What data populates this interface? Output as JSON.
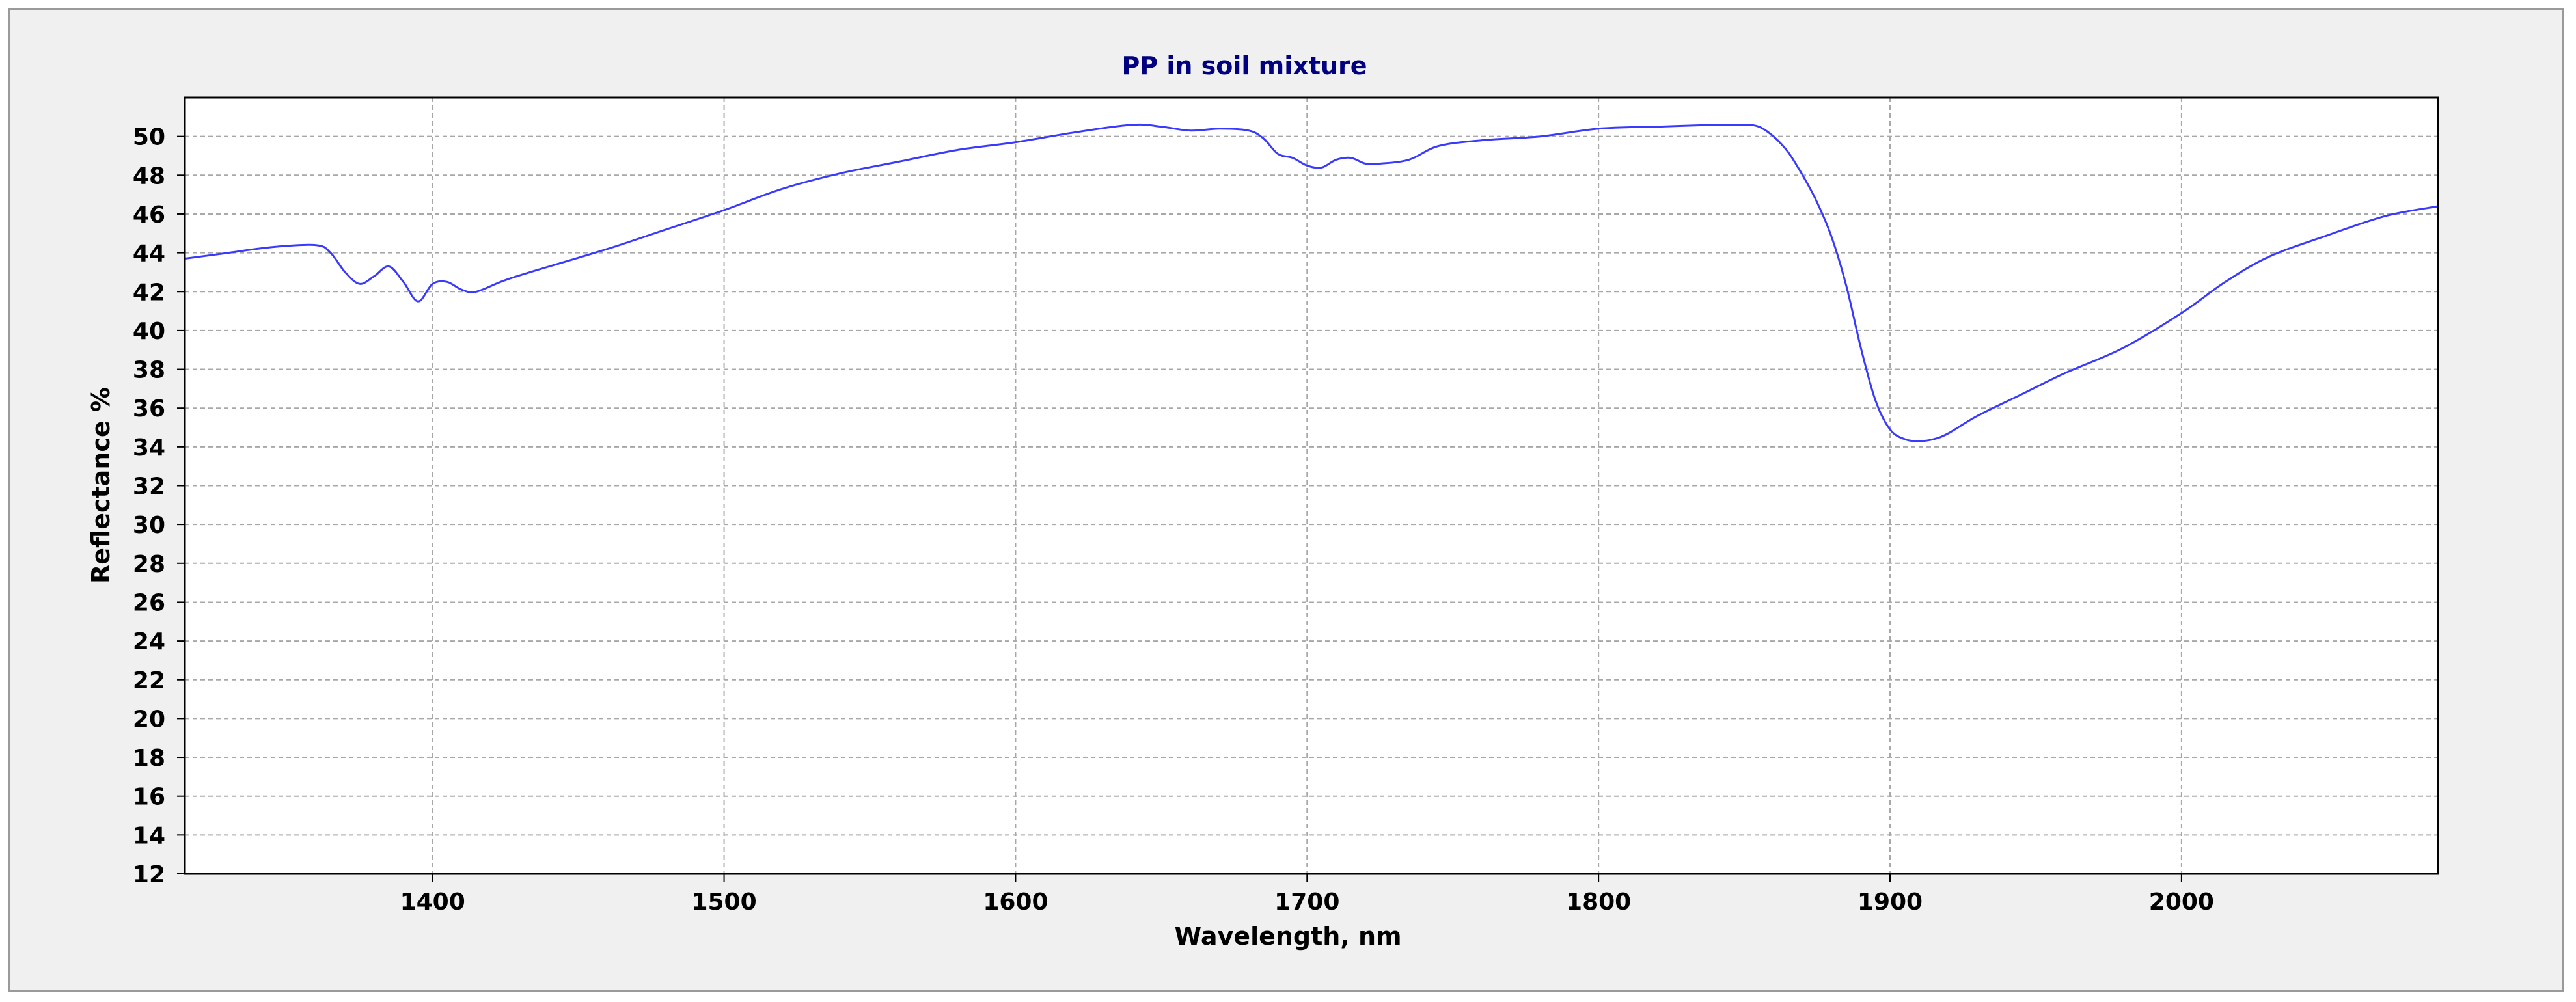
{
  "chart_data": {
    "type": "line",
    "title": "PP in soil mixture",
    "xlabel": "Wavelength, nm",
    "ylabel": "Reflectance %",
    "xlim": [
      1315,
      2088
    ],
    "ylim": [
      12,
      52
    ],
    "xticks": [
      1400,
      1500,
      1600,
      1700,
      1800,
      1900,
      2000
    ],
    "yticks": [
      12,
      14,
      16,
      18,
      20,
      22,
      24,
      26,
      28,
      30,
      32,
      34,
      36,
      38,
      40,
      42,
      44,
      46,
      48,
      50
    ],
    "grid": true,
    "line_color": "#3a3aff",
    "series": [
      {
        "x": [
          1315,
          1330,
          1345,
          1360,
          1365,
          1370,
          1375,
          1380,
          1385,
          1390,
          1395,
          1400,
          1405,
          1410,
          1415,
          1425,
          1440,
          1460,
          1480,
          1500,
          1520,
          1540,
          1560,
          1580,
          1600,
          1620,
          1640,
          1650,
          1660,
          1670,
          1680,
          1685,
          1690,
          1695,
          1700,
          1705,
          1710,
          1715,
          1720,
          1725,
          1735,
          1745,
          1760,
          1780,
          1800,
          1820,
          1840,
          1850,
          1855,
          1860,
          1865,
          1870,
          1875,
          1880,
          1885,
          1890,
          1895,
          1900,
          1905,
          1910,
          1915,
          1920,
          1930,
          1945,
          1960,
          1980,
          2000,
          2015,
          2030,
          2050,
          2070,
          2088
        ],
        "y": [
          43.7,
          44.0,
          44.3,
          44.4,
          44.0,
          43.0,
          42.4,
          42.8,
          43.3,
          42.5,
          41.5,
          42.4,
          42.5,
          42.1,
          42.0,
          42.6,
          43.3,
          44.2,
          45.2,
          46.2,
          47.3,
          48.1,
          48.7,
          49.3,
          49.7,
          50.2,
          50.6,
          50.5,
          50.3,
          50.4,
          50.3,
          49.9,
          49.1,
          48.9,
          48.5,
          48.4,
          48.8,
          48.9,
          48.6,
          48.6,
          48.8,
          49.5,
          49.8,
          50.0,
          50.4,
          50.5,
          50.6,
          50.6,
          50.5,
          50.0,
          49.2,
          48.0,
          46.6,
          44.8,
          42.3,
          39.1,
          36.4,
          34.9,
          34.4,
          34.3,
          34.4,
          34.7,
          35.6,
          36.7,
          37.8,
          39.1,
          40.9,
          42.5,
          43.8,
          44.9,
          45.9,
          46.4
        ]
      }
    ]
  }
}
